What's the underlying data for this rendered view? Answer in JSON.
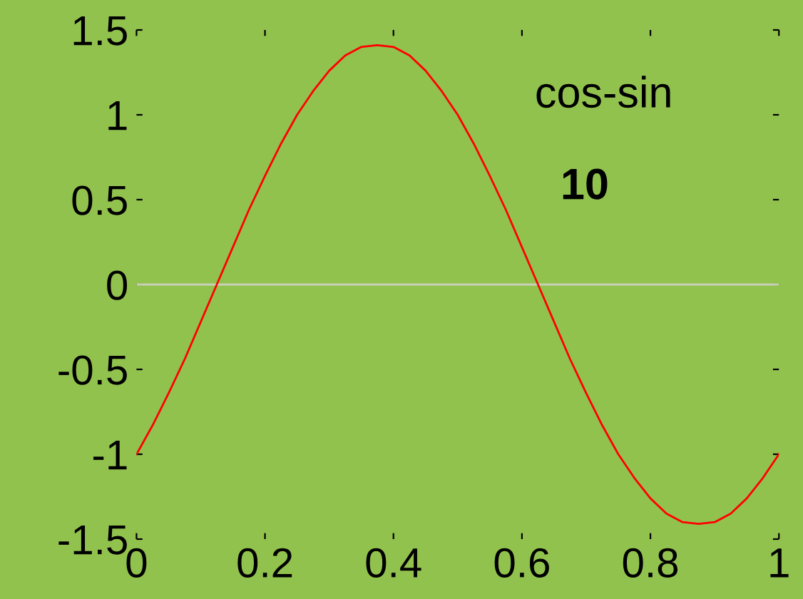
{
  "chart_data": {
    "type": "line",
    "x": [
      0,
      0.025,
      0.05,
      0.075,
      0.1,
      0.125,
      0.15,
      0.175,
      0.2,
      0.225,
      0.25,
      0.275,
      0.3,
      0.325,
      0.35,
      0.375,
      0.4,
      0.425,
      0.45,
      0.475,
      0.5,
      0.525,
      0.55,
      0.575,
      0.6,
      0.625,
      0.65,
      0.675,
      0.7,
      0.725,
      0.75,
      0.775,
      0.8,
      0.825,
      0.85,
      0.875,
      0.9,
      0.925,
      0.95,
      0.975,
      1
    ],
    "series": [
      {
        "color": "#ff0000",
        "values": [
          -1,
          -0.83,
          -0.64,
          -0.44,
          -0.22,
          0,
          0.22,
          0.44,
          0.64,
          0.83,
          1,
          1.14,
          1.26,
          1.35,
          1.4,
          1.41,
          1.4,
          1.35,
          1.26,
          1.14,
          1,
          0.83,
          0.64,
          0.44,
          0.22,
          0,
          -0.22,
          -0.44,
          -0.64,
          -0.83,
          -1,
          -1.14,
          -1.26,
          -1.35,
          -1.4,
          -1.41,
          -1.4,
          -1.35,
          -1.26,
          -1.14,
          -1
        ]
      }
    ],
    "xlim": [
      0,
      1
    ],
    "xticks": [
      0,
      0.2,
      0.4,
      0.6,
      0.8,
      1
    ],
    "ylim": [
      -1.5,
      1.5
    ],
    "yticks": [
      -1.5,
      -1,
      -0.5,
      0,
      0.5,
      1,
      1.5
    ],
    "ref_lines": [
      {
        "axis": "y",
        "value": 0,
        "color": "#c8d0b8"
      }
    ],
    "annotations": [
      "cos-sin",
      "10"
    ],
    "grid": false,
    "legend": false,
    "marker": "none",
    "line_style": "solid"
  }
}
